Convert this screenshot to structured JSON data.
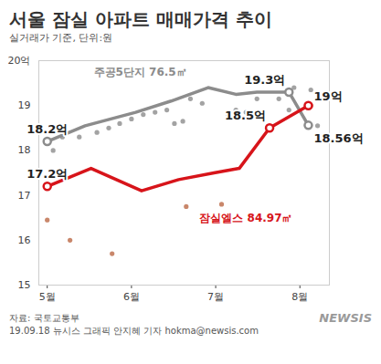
{
  "chart_data": {
    "type": "line",
    "title": "서울 잠실 아파트 매매가격 추이",
    "subtitle": "실거래가 기준, 단위:원",
    "xlim": [
      4.9,
      8.35
    ],
    "xticks": [
      {
        "value": 5,
        "label": "5월"
      },
      {
        "value": 6,
        "label": "6월"
      },
      {
        "value": 7,
        "label": "7월"
      },
      {
        "value": 8,
        "label": "8월"
      }
    ],
    "ylim": [
      15,
      20
    ],
    "yticks": [
      15,
      16,
      17,
      18,
      19,
      {
        "value": 20,
        "label": "20억"
      }
    ],
    "grid": false,
    "data_labels": true,
    "series": [
      {
        "type": "scatter",
        "color": "#a3a3a3",
        "marker": "circle",
        "x": [
          5.07,
          5.18,
          5.38,
          5.59,
          5.73,
          5.86,
          6.0,
          6.14,
          6.28,
          6.42,
          6.51,
          6.61,
          6.7,
          6.84,
          7.15,
          7.24,
          7.36,
          7.49,
          7.75,
          7.87,
          7.93,
          8.13,
          8.21
        ],
        "values": [
          18.0,
          18.3,
          18.3,
          18.4,
          18.5,
          18.6,
          18.7,
          18.8,
          18.85,
          18.9,
          18.6,
          18.65,
          19.15,
          19.05,
          18.8,
          18.9,
          18.85,
          19.15,
          19.15,
          18.9,
          19.4,
          19.35,
          18.55
        ]
      },
      {
        "type": "scatter",
        "color": "#c9876b",
        "marker": "circle",
        "x": [
          5.0,
          5.27,
          5.77,
          6.65,
          7.07,
          8.13
        ],
        "values": [
          16.45,
          16.0,
          15.7,
          16.75,
          16.8,
          19.0
        ]
      },
      {
        "name": "주공5단지 76.5㎡",
        "type": "line",
        "color": "#8c8c8c",
        "marker": "circle",
        "x": [
          5.0,
          5.45,
          6.05,
          6.47,
          6.91,
          7.24,
          7.49,
          7.87,
          8.1
        ],
        "values": [
          18.2,
          18.55,
          18.85,
          19.1,
          19.4,
          19.25,
          19.3,
          19.3,
          18.56
        ],
        "value_labels": [
          "18.2억",
          null,
          null,
          null,
          null,
          null,
          null,
          "19.3억",
          "18.56억"
        ]
      },
      {
        "name": "잠실엘스 84.97㎡",
        "type": "line",
        "color": "#d7141a",
        "marker": "circle",
        "x": [
          5.0,
          5.52,
          6.12,
          6.56,
          6.98,
          7.28,
          7.64,
          8.1
        ],
        "values": [
          17.2,
          17.6,
          17.1,
          17.35,
          17.5,
          17.6,
          18.5,
          19.0
        ],
        "value_labels": [
          "17.2억",
          null,
          null,
          null,
          null,
          null,
          "18.5억",
          "19억"
        ]
      }
    ],
    "source": "자료: 국토교통부",
    "credit": "19.09.18 뉴시스 그래픽 안지혜 기자 hokma@newsis.com",
    "logo": "NEWSIS"
  }
}
